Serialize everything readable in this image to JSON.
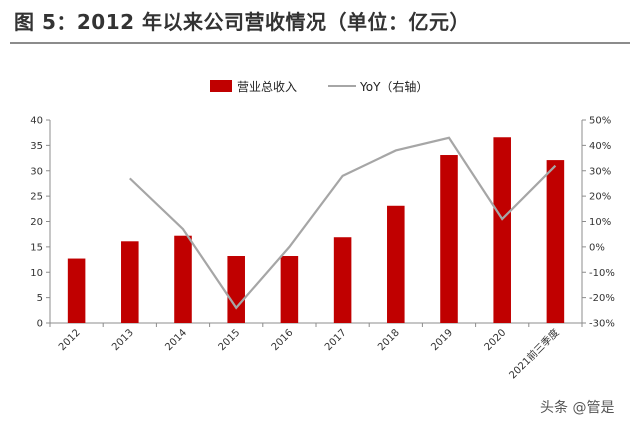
{
  "figure_title": "图 5：2012 年以来公司营收情况（单位：亿元）",
  "watermark": "头条 @管是",
  "colors": {
    "bar": "#c00000",
    "line": "#a6a6a6",
    "axis": "#8c8c8c"
  },
  "chart_data": {
    "type": "bar",
    "categories": [
      "2012",
      "2013",
      "2014",
      "2015",
      "2016",
      "2017",
      "2018",
      "2019",
      "2020",
      "2021前三季度"
    ],
    "series": [
      {
        "name": "营业总收入",
        "type": "bar",
        "axis": "left",
        "values": [
          12.7,
          16.1,
          17.2,
          13.2,
          13.2,
          16.9,
          23.1,
          33.1,
          36.6,
          32.1
        ]
      },
      {
        "name": "YoY（右轴）",
        "type": "line",
        "axis": "right",
        "values": [
          null,
          27.0,
          7.0,
          -24.0,
          0.0,
          28.0,
          38.0,
          43.0,
          11.0,
          32.0
        ]
      }
    ],
    "y_left": {
      "min": 0,
      "max": 40,
      "step": 5,
      "tick_labels": [
        "0",
        "5",
        "10",
        "15",
        "20",
        "25",
        "30",
        "35",
        "40"
      ]
    },
    "y_right": {
      "min": -30,
      "max": 50,
      "step": 10,
      "tick_labels": [
        "-30%",
        "-20%",
        "-10%",
        "0%",
        "10%",
        "20%",
        "30%",
        "40%",
        "50%"
      ]
    },
    "legend_position": "top-center",
    "grid": false
  }
}
